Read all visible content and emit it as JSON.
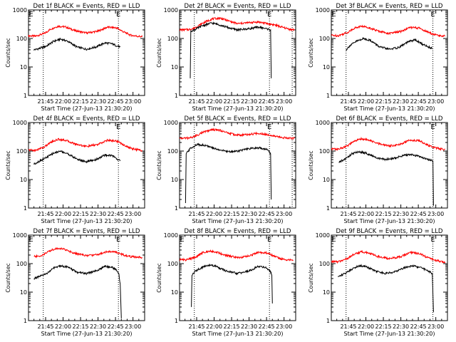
{
  "chart_data": [
    {
      "type": "line",
      "title": "Det 1f BLACK = Events, RED = LLD",
      "xlabel": "Start Time (27-Jun-13 21:30:20)",
      "ylabel": "Counts/sec",
      "yscale": "log",
      "ylim": [
        1,
        1000
      ],
      "xlim": [
        "21:30:20",
        "23:10:00"
      ],
      "x_ticks": [
        "21:45",
        "22:00",
        "22:15",
        "22:30",
        "22:45",
        "23:00"
      ],
      "y_ticks": [
        "1",
        "10",
        "100",
        "1000"
      ],
      "markers": [
        "E",
        "E"
      ],
      "marker_times": [
        "21:32:30",
        "22:47:30"
      ],
      "dotted_lines": [
        "21:43:00",
        "22:47:30"
      ],
      "series": [
        {
          "color": "#ff0000",
          "x": [
            "21:30:20",
            "21:36:00",
            "21:44:00",
            "21:50:00",
            "21:56:00",
            "22:02:00",
            "22:10:00",
            "22:20:00",
            "22:30:00",
            "22:38:00",
            "22:46:00",
            "22:52:00",
            "22:58:00",
            "23:04:00",
            "23:08:00"
          ],
          "y": [
            125,
            120,
            150,
            220,
            270,
            255,
            190,
            155,
            180,
            250,
            235,
            170,
            130,
            120,
            115
          ]
        },
        {
          "color": "#000000",
          "x": [
            "21:35:00",
            "21:40:00",
            "21:46:00",
            "21:52:00",
            "21:58:00",
            "22:04:00",
            "22:12:00",
            "22:20:00",
            "22:28:00",
            "22:36:00",
            "22:42:00",
            "22:46:00",
            "22:49:00"
          ],
          "y": [
            40,
            45,
            55,
            80,
            95,
            80,
            50,
            42,
            50,
            70,
            65,
            55,
            50
          ]
        }
      ]
    },
    {
      "type": "line",
      "title": "Det 2f BLACK = Events, RED = LLD",
      "xlabel": "Start Time (27-Jun-13 21:30:20)",
      "ylabel": "Counts/sec",
      "yscale": "log",
      "ylim": [
        1,
        1000
      ],
      "xlim": [
        "21:30:20",
        "23:10:00"
      ],
      "x_ticks": [
        "21:45",
        "22:00",
        "22:15",
        "22:30",
        "22:45",
        "23:00"
      ],
      "y_ticks": [
        "1",
        "10",
        "100",
        "1000"
      ],
      "markers": [
        "E"
      ],
      "marker_times": [
        "22:47:30"
      ],
      "dotted_lines": [
        "21:43:00",
        "22:47:30",
        "23:07:00"
      ],
      "series": [
        {
          "color": "#ff0000",
          "x": [
            "21:30:20",
            "21:38:00",
            "21:43:00",
            "21:50:00",
            "21:58:00",
            "22:05:00",
            "22:12:00",
            "22:20:00",
            "22:30:00",
            "22:38:00",
            "22:46:00",
            "22:52:00",
            "22:58:00",
            "23:05:00",
            "23:09:00"
          ],
          "y": [
            200,
            205,
            230,
            340,
            480,
            520,
            420,
            330,
            360,
            380,
            330,
            300,
            250,
            210,
            200
          ]
        },
        {
          "color": "#000000",
          "x": [
            "21:39:30",
            "21:40:00",
            "21:43:00",
            "21:50:00",
            "21:58:00",
            "22:05:00",
            "22:12:00",
            "22:20:00",
            "22:30:00",
            "22:38:00",
            "22:45:00",
            "22:48:30",
            "22:49:00"
          ],
          "y": [
            4,
            180,
            200,
            280,
            350,
            300,
            240,
            200,
            220,
            250,
            220,
            200,
            4
          ]
        }
      ]
    },
    {
      "type": "line",
      "title": "Det 3f BLACK = Events, RED = LLD",
      "xlabel": "Start Time (27-Jun-13 21:30:20)",
      "ylabel": "Counts/sec",
      "yscale": "log",
      "ylim": [
        1,
        1000
      ],
      "xlim": [
        "21:30:20",
        "23:10:00"
      ],
      "x_ticks": [
        "21:45",
        "22:00",
        "22:15",
        "22:30",
        "22:45",
        "23:00"
      ],
      "y_ticks": [
        "1",
        "10",
        "100",
        "1000"
      ],
      "markers": [
        "E",
        "E"
      ],
      "marker_times": [
        "21:32:30",
        "22:57:30"
      ],
      "dotted_lines": [
        "21:43:00",
        "22:57:30"
      ],
      "series": [
        {
          "color": "#ff0000",
          "x": [
            "21:30:20",
            "21:36:00",
            "21:44:00",
            "21:50:00",
            "21:56:00",
            "22:02:00",
            "22:10:00",
            "22:20:00",
            "22:30:00",
            "22:38:00",
            "22:46:00",
            "22:52:00",
            "22:58:00",
            "23:04:00",
            "23:08:00"
          ],
          "y": [
            130,
            125,
            160,
            230,
            270,
            245,
            185,
            150,
            175,
            245,
            230,
            175,
            140,
            125,
            120
          ]
        },
        {
          "color": "#000000",
          "x": [
            "21:43:00",
            "21:46:00",
            "21:52:00",
            "21:58:00",
            "22:04:00",
            "22:12:00",
            "22:20:00",
            "22:28:00",
            "22:36:00",
            "22:42:00",
            "22:48:00",
            "22:54:00",
            "22:57:00"
          ],
          "y": [
            40,
            55,
            80,
            100,
            85,
            50,
            42,
            48,
            75,
            90,
            65,
            50,
            45
          ]
        }
      ]
    },
    {
      "type": "line",
      "title": "Det 4f BLACK = Events, RED = LLD",
      "xlabel": "Start Time (27-Jun-13 21:30:20)",
      "ylabel": "Counts/sec",
      "yscale": "log",
      "ylim": [
        1,
        1000
      ],
      "xlim": [
        "21:30:20",
        "23:10:00"
      ],
      "x_ticks": [
        "21:45",
        "22:00",
        "22:15",
        "22:30",
        "22:45",
        "23:00"
      ],
      "y_ticks": [
        "1",
        "10",
        "100",
        "1000"
      ],
      "markers": [
        "E"
      ],
      "marker_times": [
        "22:47:30"
      ],
      "dotted_lines": [
        "21:43:00",
        "22:47:30"
      ],
      "series": [
        {
          "color": "#ff0000",
          "x": [
            "21:30:20",
            "21:36:00",
            "21:44:00",
            "21:50:00",
            "21:56:00",
            "22:02:00",
            "22:10:00",
            "22:20:00",
            "22:30:00",
            "22:38:00",
            "22:46:00",
            "22:52:00",
            "22:58:00",
            "23:04:00",
            "23:08:00"
          ],
          "y": [
            110,
            105,
            140,
            210,
            260,
            240,
            180,
            145,
            170,
            240,
            225,
            165,
            125,
            110,
            105
          ]
        },
        {
          "color": "#000000",
          "x": [
            "21:35:00",
            "21:40:00",
            "21:46:00",
            "21:52:00",
            "21:58:00",
            "22:04:00",
            "22:12:00",
            "22:20:00",
            "22:28:00",
            "22:36:00",
            "22:42:00",
            "22:46:00",
            "22:49:00"
          ],
          "y": [
            35,
            45,
            60,
            85,
            100,
            80,
            52,
            42,
            50,
            72,
            70,
            55,
            45
          ]
        }
      ]
    },
    {
      "type": "line",
      "title": "Det 5f BLACK = Events, RED = LLD",
      "xlabel": "Start Time (27-Jun-13 21:30:20)",
      "ylabel": "Counts/sec",
      "yscale": "log",
      "ylim": [
        1,
        1000
      ],
      "xlim": [
        "21:30:20",
        "23:10:00"
      ],
      "x_ticks": [
        "21:45",
        "22:00",
        "22:15",
        "22:30",
        "22:45",
        "23:00"
      ],
      "y_ticks": [
        "1",
        "10",
        "100",
        "1000"
      ],
      "markers": [
        "E"
      ],
      "marker_times": [
        "22:47:30"
      ],
      "dotted_lines": [
        "21:43:00",
        "22:47:30",
        "23:07:00"
      ],
      "series": [
        {
          "color": "#ff0000",
          "x": [
            "21:30:20",
            "21:38:00",
            "21:43:00",
            "21:50:00",
            "21:58:00",
            "22:05:00",
            "22:12:00",
            "22:20:00",
            "22:30:00",
            "22:38:00",
            "22:46:00",
            "22:52:00",
            "22:58:00",
            "23:05:00",
            "23:09:00"
          ],
          "y": [
            280,
            285,
            320,
            450,
            560,
            540,
            430,
            360,
            380,
            420,
            380,
            340,
            300,
            285,
            280
          ]
        },
        {
          "color": "#000000",
          "x": [
            "21:35:30",
            "21:36:00",
            "21:40:00",
            "21:46:00",
            "21:52:00",
            "21:58:00",
            "22:05:00",
            "22:12:00",
            "22:20:00",
            "22:30:00",
            "22:38:00",
            "22:44:00",
            "22:47:00",
            "22:48:30",
            "22:49:00"
          ],
          "y": [
            1.5,
            80,
            130,
            170,
            160,
            130,
            110,
            95,
            100,
            120,
            130,
            120,
            100,
            80,
            2
          ]
        }
      ]
    },
    {
      "type": "line",
      "title": "Det 6f BLACK = Events, RED = LLD",
      "xlabel": "Start Time (27-Jun-13 21:30:20)",
      "ylabel": "Counts/sec",
      "yscale": "log",
      "ylim": [
        1,
        1000
      ],
      "xlim": [
        "21:30:20",
        "23:10:00"
      ],
      "x_ticks": [
        "21:45",
        "22:00",
        "22:15",
        "22:30",
        "22:45",
        "23:00"
      ],
      "y_ticks": [
        "1",
        "10",
        "100",
        "1000"
      ],
      "markers": [
        "E"
      ],
      "marker_times": [
        "22:57:30"
      ],
      "dotted_lines": [
        "21:43:00",
        "22:57:30"
      ],
      "series": [
        {
          "color": "#ff0000",
          "x": [
            "21:30:20",
            "21:36:00",
            "21:44:00",
            "21:50:00",
            "21:56:00",
            "22:02:00",
            "22:10:00",
            "22:20:00",
            "22:30:00",
            "22:38:00",
            "22:46:00",
            "22:52:00",
            "22:58:00",
            "23:04:00",
            "23:08:00"
          ],
          "y": [
            120,
            115,
            150,
            220,
            270,
            245,
            185,
            150,
            175,
            245,
            230,
            170,
            135,
            120,
            115
          ]
        },
        {
          "color": "#000000",
          "x": [
            "21:37:00",
            "21:43:00",
            "21:48:00",
            "21:54:00",
            "22:00:00",
            "22:08:00",
            "22:16:00",
            "22:24:00",
            "22:32:00",
            "22:40:00",
            "22:48:00",
            "22:54:00",
            "22:57:30",
            "22:58:00"
          ],
          "y": [
            40,
            55,
            80,
            95,
            85,
            60,
            50,
            55,
            70,
            75,
            60,
            50,
            45,
            1.2
          ]
        }
      ]
    },
    {
      "type": "line",
      "title": "Det 7f BLACK = Events, RED = LLD",
      "xlabel": "Start Time (27-Jun-13 21:30:20)",
      "ylabel": "Counts/sec",
      "yscale": "log",
      "ylim": [
        1,
        1000
      ],
      "xlim": [
        "21:30:20",
        "23:10:00"
      ],
      "x_ticks": [
        "21:45",
        "22:00",
        "22:15",
        "22:30",
        "22:45",
        "23:00"
      ],
      "y_ticks": [
        "1",
        "10",
        "100",
        "1000"
      ],
      "markers": [
        "E",
        "E"
      ],
      "marker_times": [
        "21:32:30",
        "22:47:30"
      ],
      "dotted_lines": [
        "21:43:00",
        "22:47:30"
      ],
      "series": [
        {
          "color": "#ff0000",
          "x": [
            "21:35:00",
            "21:40:00",
            "21:44:00",
            "21:50:00",
            "21:56:00",
            "22:02:00",
            "22:10:00",
            "22:20:00",
            "22:30:00",
            "22:38:00",
            "22:46:00",
            "22:52:00",
            "22:58:00",
            "23:04:00",
            "23:08:00"
          ],
          "y": [
            180,
            180,
            220,
            300,
            350,
            310,
            230,
            190,
            210,
            270,
            250,
            200,
            175,
            170,
            165
          ]
        },
        {
          "color": "#000000",
          "x": [
            "21:35:00",
            "21:40:00",
            "21:46:00",
            "21:52:00",
            "21:58:00",
            "22:04:00",
            "22:12:00",
            "22:20:00",
            "22:28:00",
            "22:36:00",
            "22:42:00",
            "22:46:00",
            "22:48:00",
            "22:49:00",
            "22:50:00"
          ],
          "y": [
            30,
            35,
            45,
            70,
            85,
            75,
            50,
            45,
            55,
            80,
            75,
            60,
            40,
            20,
            1.2
          ]
        }
      ]
    },
    {
      "type": "line",
      "title": "Det 8f BLACK = Events, RED = LLD",
      "xlabel": "Start Time (27-Jun-13 21:30:20)",
      "ylabel": "Counts/sec",
      "yscale": "log",
      "ylim": [
        1,
        1000
      ],
      "xlim": [
        "21:30:20",
        "23:10:00"
      ],
      "x_ticks": [
        "21:45",
        "22:00",
        "22:15",
        "22:30",
        "22:45",
        "23:00"
      ],
      "y_ticks": [
        "1",
        "10",
        "100",
        "1000"
      ],
      "markers": [
        "E",
        "E"
      ],
      "marker_times": [
        "21:32:30",
        "22:47:30"
      ],
      "dotted_lines": [
        "21:43:00",
        "22:47:30"
      ],
      "series": [
        {
          "color": "#ff0000",
          "x": [
            "21:30:20",
            "21:36:00",
            "21:44:00",
            "21:50:00",
            "21:56:00",
            "22:02:00",
            "22:10:00",
            "22:20:00",
            "22:30:00",
            "22:38:00",
            "22:46:00",
            "22:52:00",
            "22:58:00",
            "23:04:00",
            "23:08:00"
          ],
          "y": [
            140,
            135,
            170,
            240,
            280,
            255,
            195,
            160,
            185,
            250,
            235,
            180,
            145,
            135,
            130
          ]
        },
        {
          "color": "#000000",
          "x": [
            "21:40:30",
            "21:41:00",
            "21:44:00",
            "21:50:00",
            "21:56:00",
            "22:02:00",
            "22:10:00",
            "22:20:00",
            "22:30:00",
            "22:38:00",
            "22:44:00",
            "22:48:00",
            "22:49:30",
            "22:50:00"
          ],
          "y": [
            3,
            40,
            55,
            75,
            90,
            80,
            55,
            45,
            55,
            80,
            75,
            55,
            40,
            4
          ]
        }
      ]
    },
    {
      "type": "line",
      "title": "Det 9f BLACK = Events, RED = LLD",
      "xlabel": "Start Time (27-Jun-13 21:30:20)",
      "ylabel": "Counts/sec",
      "yscale": "log",
      "ylim": [
        1,
        1000
      ],
      "xlim": [
        "21:30:20",
        "23:10:00"
      ],
      "x_ticks": [
        "21:45",
        "22:00",
        "22:15",
        "22:30",
        "22:45",
        "23:00"
      ],
      "y_ticks": [
        "1",
        "10",
        "100",
        "1000"
      ],
      "markers": [
        "E",
        "E"
      ],
      "marker_times": [
        "21:32:30",
        "22:57:30"
      ],
      "dotted_lines": [
        "21:43:00",
        "22:57:30"
      ],
      "series": [
        {
          "color": "#ff0000",
          "x": [
            "21:30:20",
            "21:36:00",
            "21:44:00",
            "21:50:00",
            "21:56:00",
            "22:02:00",
            "22:10:00",
            "22:20:00",
            "22:30:00",
            "22:38:00",
            "22:46:00",
            "22:52:00",
            "22:58:00",
            "23:04:00",
            "23:08:00"
          ],
          "y": [
            120,
            115,
            150,
            215,
            260,
            240,
            180,
            150,
            175,
            245,
            230,
            170,
            135,
            120,
            115
          ]
        },
        {
          "color": "#000000",
          "x": [
            "21:36:00",
            "21:42:00",
            "21:48:00",
            "21:54:00",
            "22:00:00",
            "22:08:00",
            "22:16:00",
            "22:24:00",
            "22:32:00",
            "22:40:00",
            "22:48:00",
            "22:54:00",
            "22:57:00",
            "22:58:00"
          ],
          "y": [
            35,
            45,
            65,
            85,
            80,
            55,
            45,
            50,
            70,
            85,
            70,
            55,
            45,
            2
          ]
        }
      ]
    }
  ]
}
